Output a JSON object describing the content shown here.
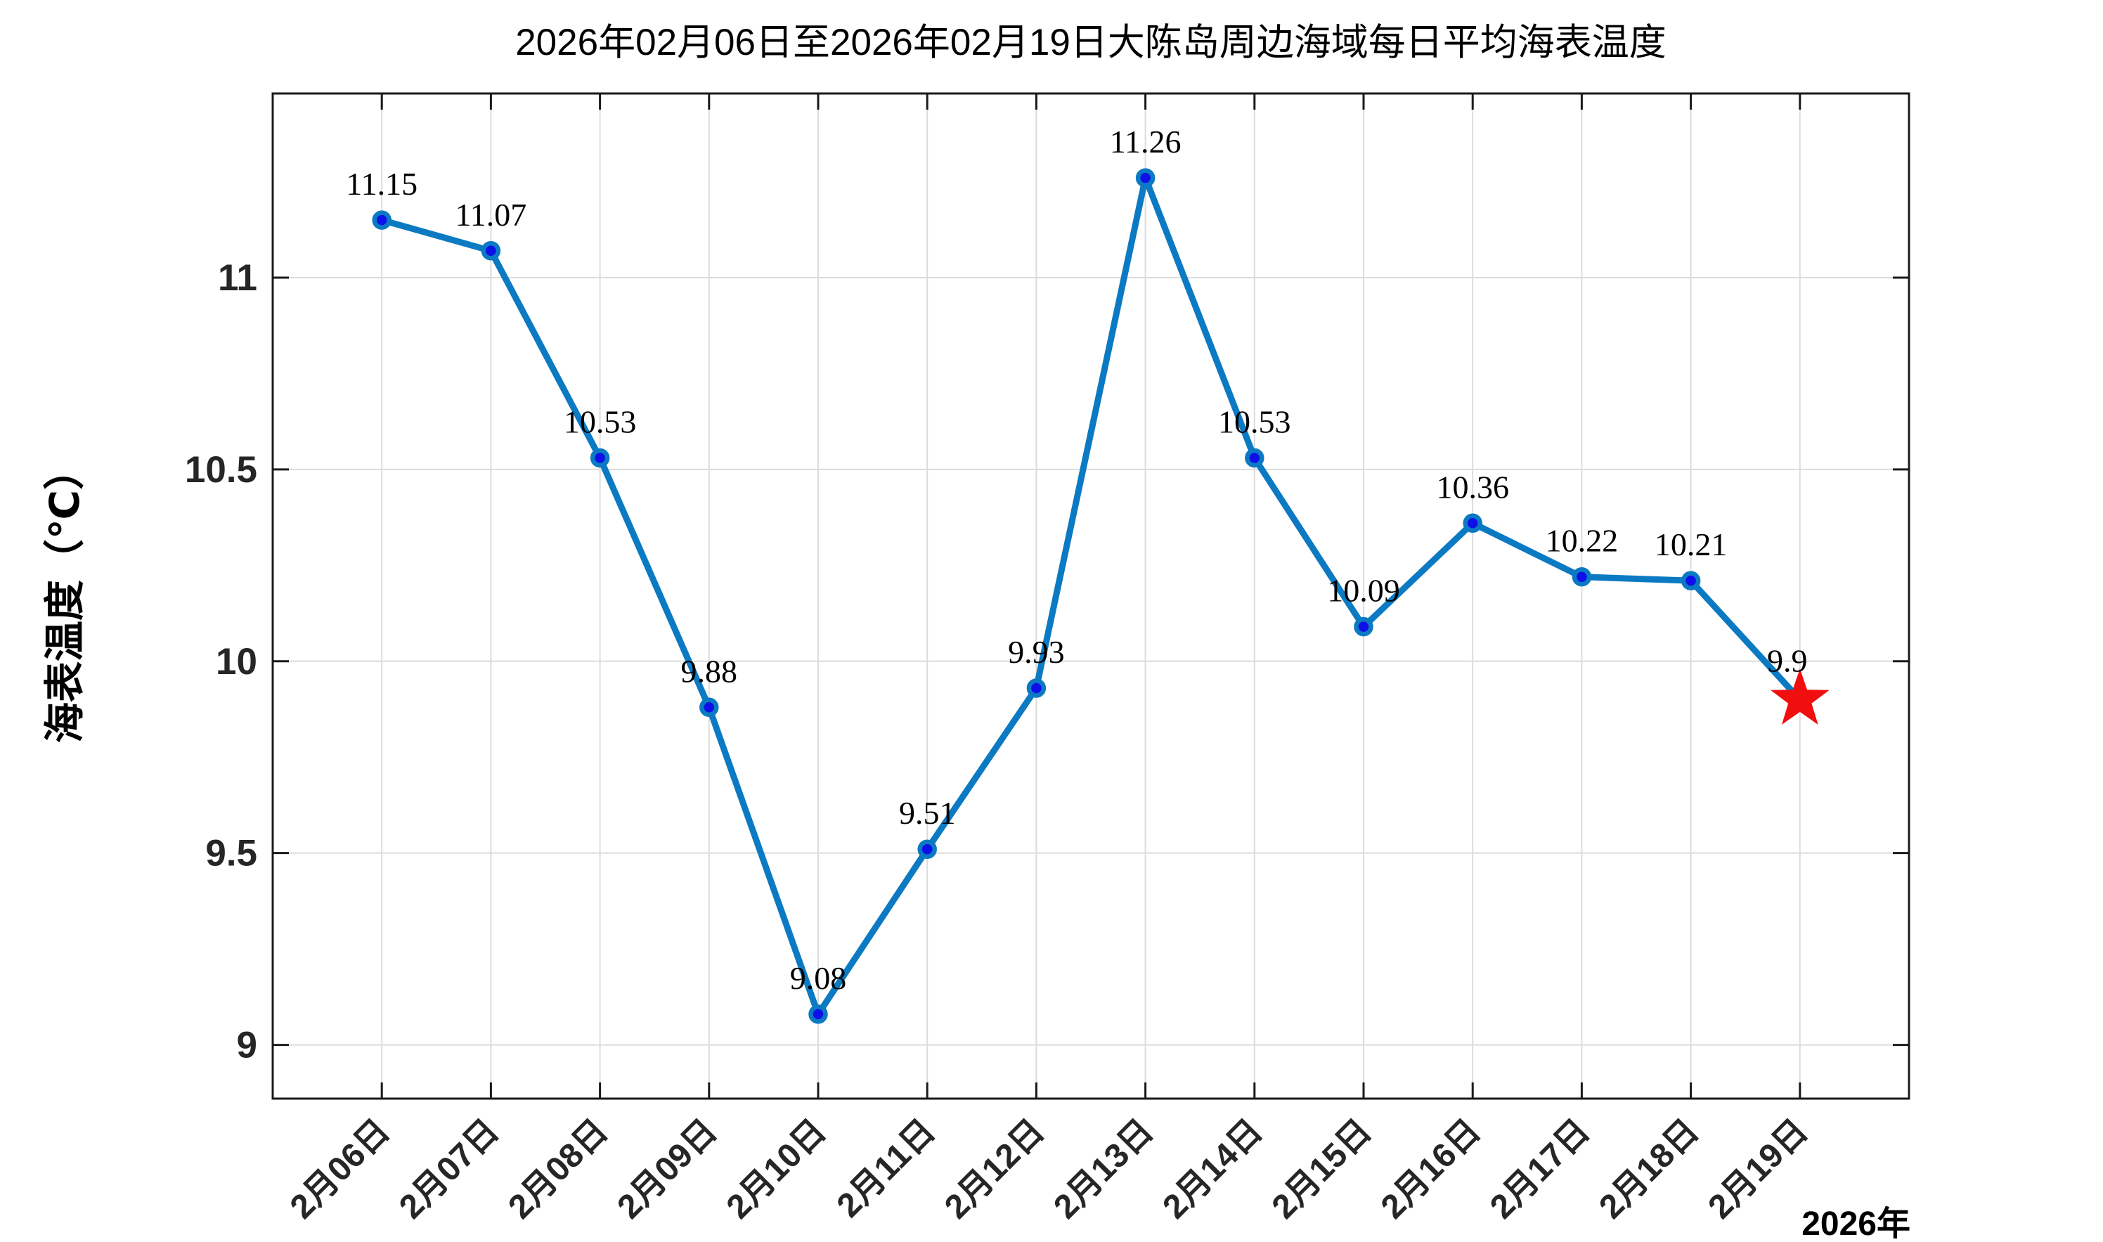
{
  "chart_data": {
    "type": "line",
    "title": "2026年02月06日至2026年02月19日大陈岛周边海域每日平均海表温度",
    "ylabel": "海表温度（℃）",
    "xlabel": "",
    "x_year_label": "2026年",
    "categories": [
      "2月06日",
      "2月07日",
      "2月08日",
      "2月09日",
      "2月10日",
      "2月11日",
      "2月12日",
      "2月13日",
      "2月14日",
      "2月15日",
      "2月16日",
      "2月17日",
      "2月18日",
      "2月19日"
    ],
    "values": [
      11.15,
      11.07,
      10.53,
      9.88,
      9.08,
      9.51,
      9.93,
      11.26,
      10.53,
      10.09,
      10.36,
      10.22,
      10.21,
      9.9
    ],
    "point_labels": [
      "11.15",
      "11.07",
      "10.53",
      "9.88",
      "9.08",
      "9.51",
      "9.93",
      "11.26",
      "10.53",
      "10.09",
      "10.36",
      "10.22",
      "10.21",
      "9.9"
    ],
    "y_ticks": [
      9,
      9.5,
      10,
      10.5,
      11
    ],
    "y_tick_labels": [
      "9",
      "9.5",
      "10",
      "10.5",
      "11"
    ],
    "ylim": [
      8.86,
      11.48
    ],
    "grid": true,
    "legend": "none",
    "line_color": "#0b7ac3",
    "marker_fill_color": "#0f0fe8",
    "grid_color": "#dcdcdc",
    "axis_color": "#1a1a1a",
    "tick_label_color": "#262626",
    "last_point_marker": "star",
    "last_point_color": "#f10e0e"
  }
}
